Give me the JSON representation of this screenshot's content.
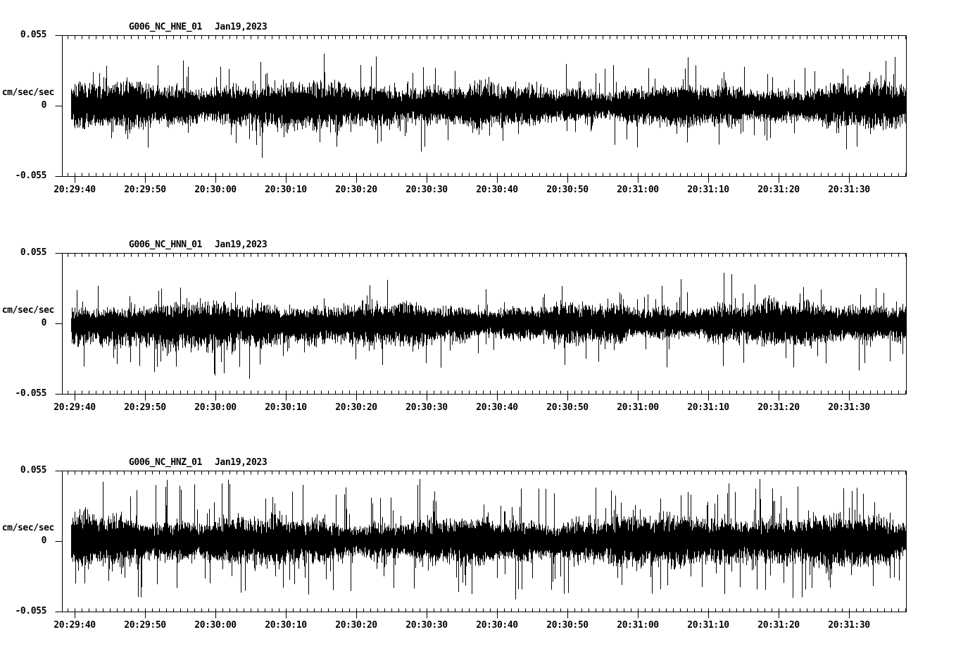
{
  "page": {
    "background": "#ffffff",
    "ink": "#000000",
    "description": "Three-channel strong-motion seismogram noise display, station G006 (NC network), Jan 19 2023"
  },
  "chart_data": [
    {
      "type": "line",
      "trace_kind": "seismogram-minmax-noise",
      "station_label": "G006_NC_HNE_01",
      "date_label": "Jan19,2023",
      "ylabel": "cm/sec/sec",
      "y_zero_label": "0",
      "ytick_top_label": "0.055",
      "ytick_bottom_label": "-0.055",
      "yticks": [
        -0.055,
        0,
        0.055
      ],
      "ylim": [
        -0.055,
        0.055
      ],
      "xtick_labels": [
        "20:29:40",
        "20:29:50",
        "20:30:00",
        "20:30:10",
        "20:30:20",
        "20:30:30",
        "20:30:40",
        "20:30:50",
        "20:31:00",
        "20:31:10",
        "20:31:20",
        "20:31:30"
      ],
      "x_major_step_seconds": 10,
      "x_minor_step_seconds": 1,
      "grid": false,
      "noise_model": {
        "seed": 7,
        "sigma": 0.0085,
        "spike_prob": 0.1,
        "spike_max": 0.024,
        "early_down_skew": 0
      }
    },
    {
      "type": "line",
      "trace_kind": "seismogram-minmax-noise",
      "station_label": "G006_NC_HNN_01",
      "date_label": "Jan19,2023",
      "ylabel": "cm/sec/sec",
      "y_zero_label": "0",
      "ytick_top_label": "0.055",
      "ytick_bottom_label": "-0.055",
      "yticks": [
        -0.055,
        0,
        0.055
      ],
      "ylim": [
        -0.055,
        0.055
      ],
      "xtick_labels": [
        "20:29:40",
        "20:29:50",
        "20:30:00",
        "20:30:10",
        "20:30:20",
        "20:30:30",
        "20:30:40",
        "20:30:50",
        "20:31:00",
        "20:31:10",
        "20:31:20",
        "20:31:30"
      ],
      "x_major_step_seconds": 10,
      "x_minor_step_seconds": 1,
      "grid": false,
      "noise_model": {
        "seed": 13,
        "sigma": 0.0082,
        "spike_prob": 0.1,
        "spike_max": 0.027,
        "early_down_skew": 0.35
      }
    },
    {
      "type": "line",
      "trace_kind": "seismogram-minmax-noise",
      "station_label": "G006_NC_HNZ_01",
      "date_label": "Jan19,2023",
      "ylabel": "cm/sec/sec",
      "y_zero_label": "0",
      "ytick_top_label": "0.055",
      "ytick_bottom_label": "-0.055",
      "yticks": [
        -0.055,
        0,
        0.055
      ],
      "ylim": [
        -0.055,
        0.055
      ],
      "xtick_labels": [
        "20:29:40",
        "20:29:50",
        "20:30:00",
        "20:30:10",
        "20:30:20",
        "20:30:30",
        "20:30:40",
        "20:30:50",
        "20:31:00",
        "20:31:10",
        "20:31:20",
        "20:31:30"
      ],
      "x_major_step_seconds": 10,
      "x_minor_step_seconds": 1,
      "grid": false,
      "noise_model": {
        "seed": 29,
        "sigma": 0.0095,
        "spike_prob": 0.16,
        "spike_max": 0.034,
        "early_down_skew": 0
      }
    }
  ]
}
